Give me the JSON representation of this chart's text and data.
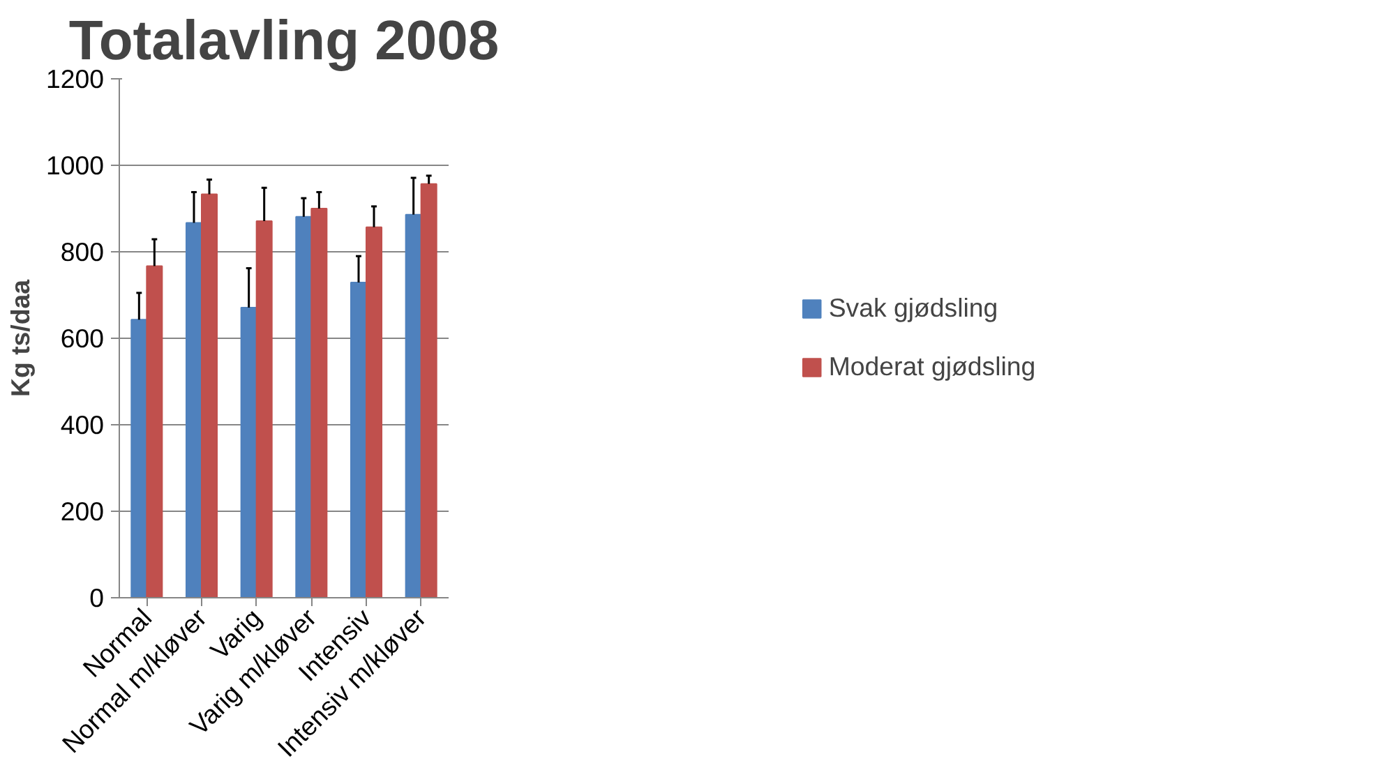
{
  "chart_data": {
    "type": "bar",
    "title": "Totalavling 2008",
    "ylabel": "Kg ts/daa",
    "categories": [
      "Normal",
      "Normal m/kløver",
      "Varig",
      "Varig m/kløver",
      "Intensiv",
      "Intensiv m/kløver"
    ],
    "series": [
      {
        "name": "Svak gjødsling",
        "color": "#4f81bd",
        "values": [
          643,
          867,
          671,
          881,
          729,
          886
        ],
        "errors": [
          62,
          71,
          91,
          43,
          61,
          85
        ]
      },
      {
        "name": "Moderat gjødsling",
        "color": "#c0504d",
        "values": [
          767,
          933,
          871,
          900,
          857,
          957
        ],
        "errors": [
          62,
          34,
          77,
          38,
          48,
          19
        ]
      }
    ],
    "ylim": [
      0,
      1200
    ],
    "yticks": [
      0,
      200,
      400,
      600,
      800,
      1000,
      1200
    ],
    "grid": "y",
    "legend": "right"
  }
}
